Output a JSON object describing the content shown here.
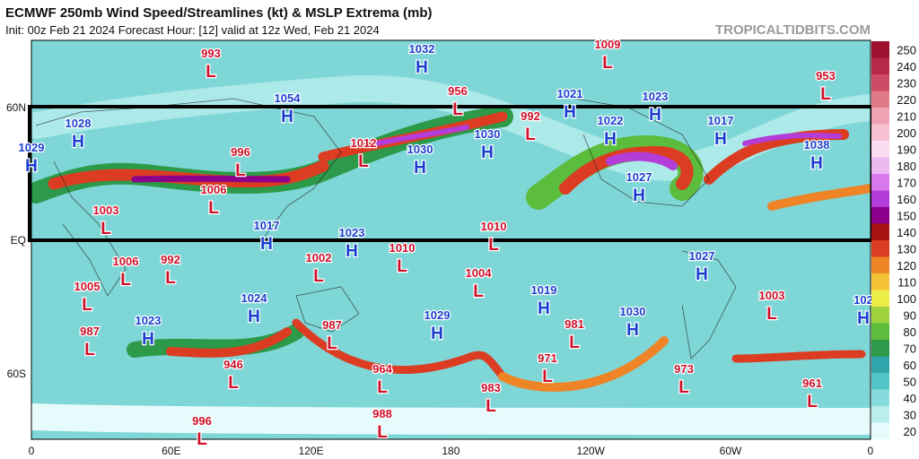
{
  "header": {
    "title": "ECMWF 250mb Wind Speed/Streamlines (kt) & MSLP Extrema (mb)",
    "subtitle": "Init: 00z Feb 21 2024   Forecast Hour: [12]   valid at 12z Wed, Feb 21 2024",
    "watermark": "TROPICALTIDBITS.COM"
  },
  "axes": {
    "x_labels": [
      "0",
      "60E",
      "120E",
      "180",
      "120W",
      "60W",
      "0"
    ],
    "y_labels": [
      "60N",
      "EQ",
      "60S"
    ]
  },
  "colorbar": {
    "ticks": [
      20,
      30,
      40,
      50,
      60,
      70,
      80,
      90,
      100,
      110,
      120,
      130,
      140,
      150,
      160,
      170,
      180,
      190,
      200,
      210,
      220,
      230,
      240,
      250
    ],
    "colors": [
      "#e6fbfb",
      "#b8eeee",
      "#86dcdc",
      "#52c4c6",
      "#2ea6ab",
      "#2c9a48",
      "#5cbc3c",
      "#9ed23e",
      "#eeee48",
      "#f2c232",
      "#ee8426",
      "#dc3c22",
      "#a81414",
      "#8c008c",
      "#b43cd8",
      "#d878ec",
      "#ecb8f0",
      "#f8dcf0",
      "#f6c2d2",
      "#eea2b4",
      "#e07888",
      "#cc4a66",
      "#b82848",
      "#9c1030"
    ]
  },
  "centers": [
    {
      "type": "L",
      "value": 993
    },
    {
      "type": "H",
      "value": 1032
    },
    {
      "type": "L",
      "value": 1009
    },
    {
      "type": "L",
      "value": 953
    },
    {
      "type": "L",
      "value": 956
    },
    {
      "type": "H",
      "value": 1054
    },
    {
      "type": "H",
      "value": 1021
    },
    {
      "type": "H",
      "value": 1023
    },
    {
      "type": "L",
      "value": 992
    },
    {
      "type": "H",
      "value": 1022
    },
    {
      "type": "H",
      "value": 1017
    },
    {
      "type": "H",
      "value": 1028
    },
    {
      "type": "H",
      "value": 1029
    },
    {
      "type": "L",
      "value": 1012
    },
    {
      "type": "H",
      "value": 1030
    },
    {
      "type": "L",
      "value": 996
    },
    {
      "type": "H",
      "value": 1030
    },
    {
      "type": "H",
      "value": 1038
    },
    {
      "type": "H",
      "value": 1027
    },
    {
      "type": "L",
      "value": 1006
    },
    {
      "type": "L",
      "value": 1003
    },
    {
      "type": "H",
      "value": 1017
    },
    {
      "type": "H",
      "value": 1023
    },
    {
      "type": "L",
      "value": 1010
    },
    {
      "type": "L",
      "value": 1010
    },
    {
      "type": "L",
      "value": 1006
    },
    {
      "type": "L",
      "value": 992
    },
    {
      "type": "L",
      "value": 1002
    },
    {
      "type": "H",
      "value": 1027
    },
    {
      "type": "L",
      "value": 1004
    },
    {
      "type": "L",
      "value": 1005
    },
    {
      "type": "H",
      "value": 1019
    },
    {
      "type": "L",
      "value": 1003
    },
    {
      "type": "H",
      "value": 1024
    },
    {
      "type": "H",
      "value": 102
    },
    {
      "type": "L",
      "value": 987
    },
    {
      "type": "H",
      "value": 1023
    },
    {
      "type": "L",
      "value": 987
    },
    {
      "type": "H",
      "value": 1029
    },
    {
      "type": "L",
      "value": 981
    },
    {
      "type": "H",
      "value": 1030
    },
    {
      "type": "L",
      "value": 946
    },
    {
      "type": "L",
      "value": 964
    },
    {
      "type": "L",
      "value": 971
    },
    {
      "type": "L",
      "value": 973
    },
    {
      "type": "L",
      "value": 961
    },
    {
      "type": "L",
      "value": 983
    },
    {
      "type": "L",
      "value": 996
    },
    {
      "type": "L",
      "value": 988
    }
  ]
}
